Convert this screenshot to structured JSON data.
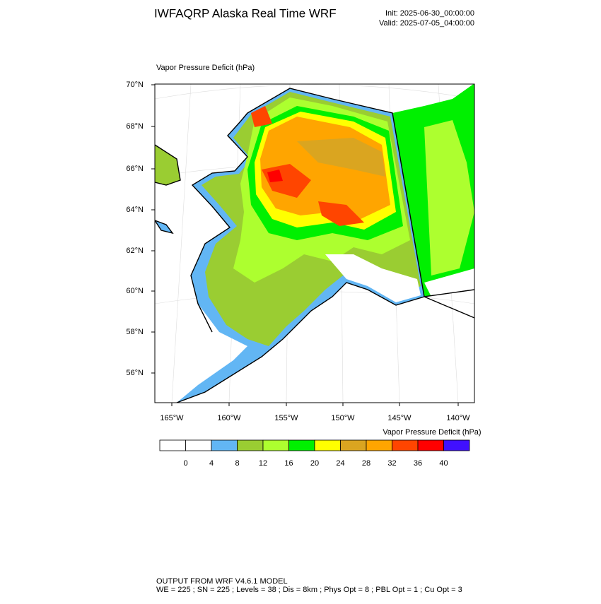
{
  "header": {
    "title": "IWFAQRP Alaska Real Time WRF",
    "init": "Init: 2025-06-30_00:00:00",
    "valid": "Valid: 2025-07-05_04:00:00"
  },
  "map": {
    "label": "Vapor Pressure Deficit   (hPa)",
    "lat_labels": [
      "70°N",
      "68°N",
      "66°N",
      "64°N",
      "62°N",
      "60°N",
      "58°N",
      "56°N"
    ],
    "lon_labels": [
      "165°W",
      "160°W",
      "155°W",
      "150°W",
      "145°W",
      "140°W"
    ]
  },
  "colorbar": {
    "title": "Vapor Pressure Deficit  (hPa)",
    "colors": [
      "#ffffff",
      "#ffffff",
      "#62b6f4",
      "#9acd32",
      "#adff2f",
      "#00f000",
      "#ffff00",
      "#daa520",
      "#ffa500",
      "#ff4500",
      "#ff0000",
      "#4010ff"
    ],
    "ticks": [
      0,
      4,
      8,
      12,
      16,
      20,
      24,
      28,
      32,
      36,
      40
    ]
  },
  "footer": {
    "line1": "OUTPUT FROM WRF V4.6.1 MODEL",
    "line2": "WE = 225 ; SN = 225 ; Levels = 38 ; Dis = 8km ; Phys Opt = 8 ; PBL Opt = 1 ; Cu Opt = 3"
  }
}
